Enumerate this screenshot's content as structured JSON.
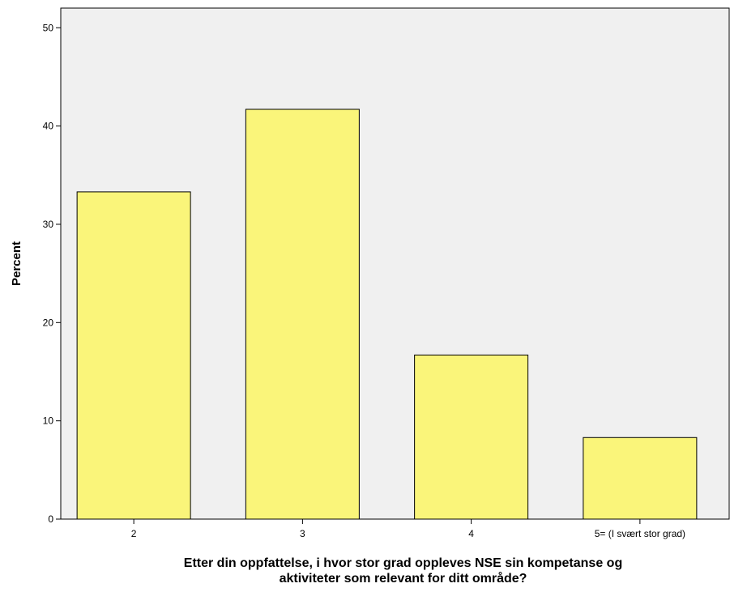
{
  "chart_data": {
    "type": "bar",
    "categories": [
      "2",
      "3",
      "4",
      "5= (I svært stor grad)"
    ],
    "values": [
      33.3,
      41.7,
      16.7,
      8.3
    ],
    "title": "",
    "xlabel_lines": [
      "Etter din oppfattelse, i hvor stor grad oppleves NSE sin kompetanse og",
      "aktiviteter som relevant for ditt område?"
    ],
    "ylabel": "Percent",
    "ylim": [
      0,
      52
    ],
    "yticks": [
      0,
      10,
      20,
      30,
      40,
      50
    ],
    "grid": false,
    "colors": {
      "bar_fill": "#FAF57A",
      "bar_stroke": "#000000",
      "plot_background": "#F0F0F0"
    }
  }
}
